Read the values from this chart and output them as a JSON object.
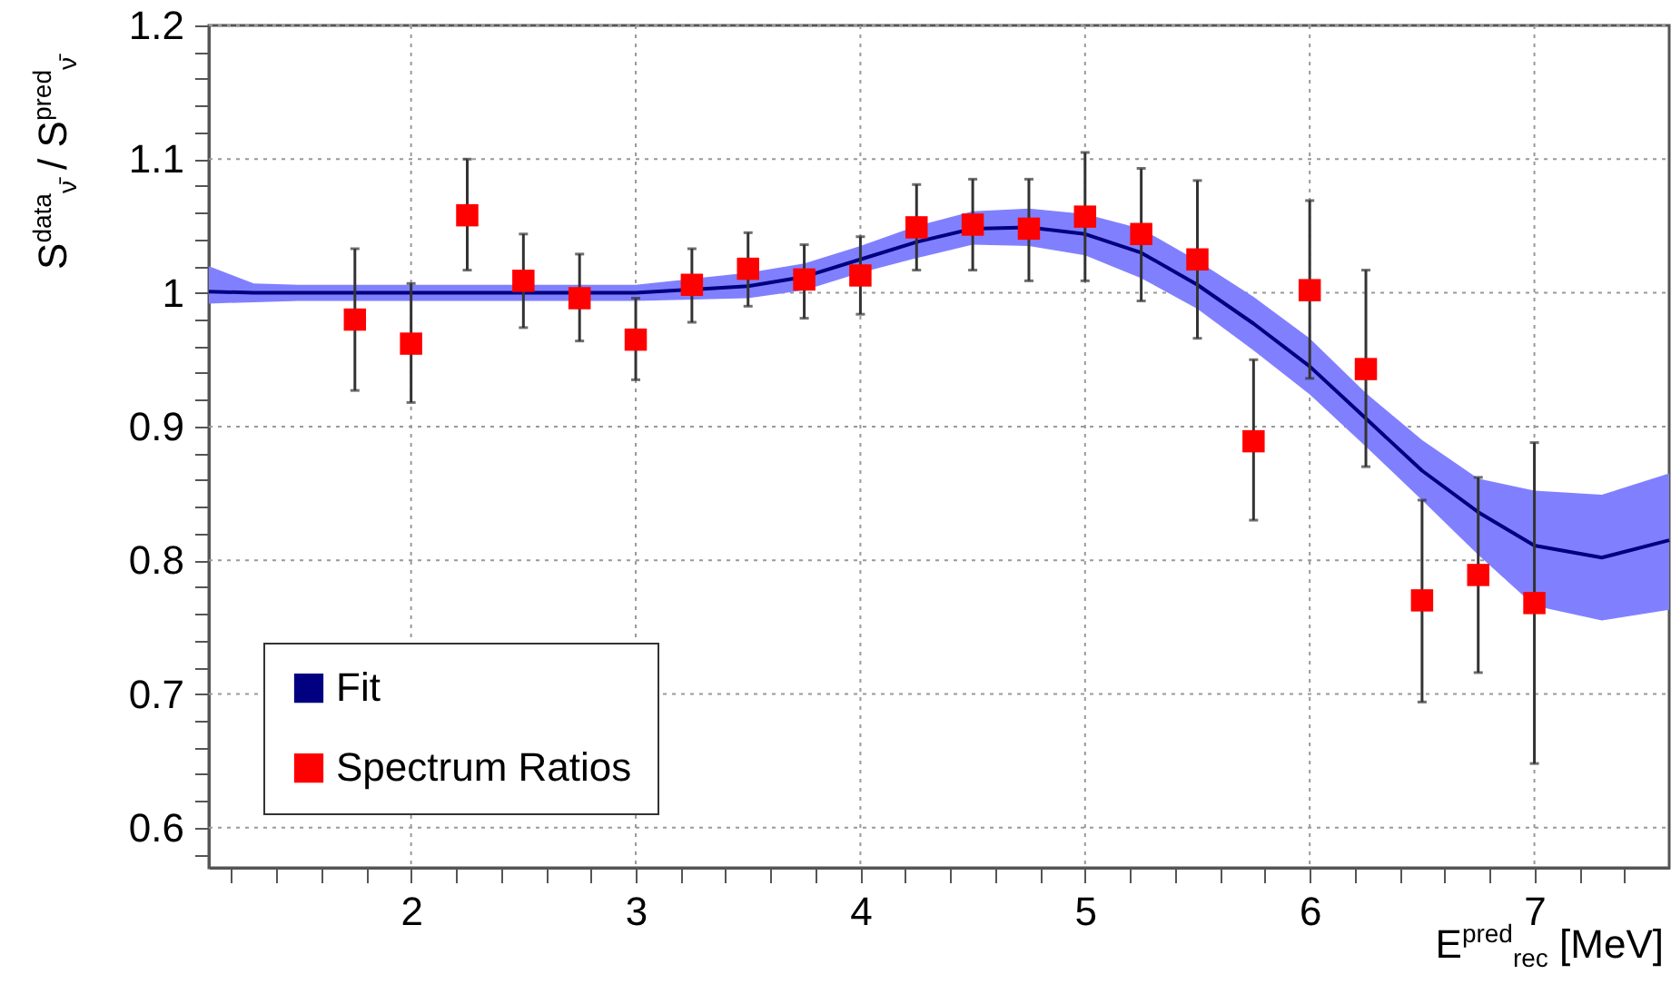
{
  "chart_data": {
    "type": "scatter",
    "xlabel": "E$^{pred}$$_{rec}$ [MeV]",
    "ylabel": "S$^{data}$$_{ν̄}$ / S$^{pred}$$_{ν̄}$",
    "xlim": [
      1.1,
      7.6
    ],
    "ylim": [
      0.57,
      1.2
    ],
    "xticks": [
      {
        "value": 1.2,
        "label": null
      },
      {
        "value": 1.4,
        "label": null
      },
      {
        "value": 1.6,
        "label": null
      },
      {
        "value": 1.8,
        "label": null
      },
      2,
      {
        "value": 2.2,
        "label": null
      },
      {
        "value": 2.4,
        "label": null
      },
      {
        "value": 2.6,
        "label": null
      },
      {
        "value": 2.8,
        "label": null
      },
      3,
      {
        "value": 3.2,
        "label": null
      },
      {
        "value": 3.4,
        "label": null
      },
      {
        "value": 3.6,
        "label": null
      },
      {
        "value": 3.8,
        "label": null
      },
      4,
      {
        "value": 4.2,
        "label": null
      },
      {
        "value": 4.4,
        "label": null
      },
      {
        "value": 4.6,
        "label": null
      },
      {
        "value": 4.8,
        "label": null
      },
      5,
      {
        "value": 5.2,
        "label": null
      },
      {
        "value": 5.4,
        "label": null
      },
      {
        "value": 5.6,
        "label": null
      },
      {
        "value": 5.8,
        "label": null
      },
      6,
      {
        "value": 6.2,
        "label": null
      },
      {
        "value": 6.4,
        "label": null
      },
      {
        "value": 6.6,
        "label": null
      },
      {
        "value": 6.8,
        "label": null
      },
      7,
      {
        "value": 7.2,
        "label": null
      },
      {
        "value": 7.4,
        "label": null
      }
    ],
    "yticks": [
      {
        "value": 0.58,
        "label": null
      },
      0.6,
      {
        "value": 0.62,
        "label": null
      },
      {
        "value": 0.64,
        "label": null
      },
      {
        "value": 0.66,
        "label": null
      },
      {
        "value": 0.68,
        "label": null
      },
      0.7,
      {
        "value": 0.72,
        "label": null
      },
      {
        "value": 0.74,
        "label": null
      },
      {
        "value": 0.76,
        "label": null
      },
      {
        "value": 0.78,
        "label": null
      },
      0.8,
      {
        "value": 0.82,
        "label": null
      },
      {
        "value": 0.84,
        "label": null
      },
      {
        "value": 0.86,
        "label": null
      },
      {
        "value": 0.88,
        "label": null
      },
      0.9,
      {
        "value": 0.92,
        "label": null
      },
      {
        "value": 0.94,
        "label": null
      },
      {
        "value": 0.96,
        "label": null
      },
      {
        "value": 0.98,
        "label": null
      },
      1,
      {
        "value": 1.02,
        "label": null
      },
      {
        "value": 1.04,
        "label": null
      },
      {
        "value": 1.06,
        "label": null
      },
      {
        "value": 1.08,
        "label": null
      },
      1.1,
      {
        "value": 1.12,
        "label": null
      },
      {
        "value": 1.14,
        "label": null
      },
      {
        "value": 1.16,
        "label": null
      },
      {
        "value": 1.18,
        "label": null
      },
      1.2
    ],
    "grid": true,
    "legend": "bottom left",
    "series": [
      {
        "name": "Fit",
        "type": "line",
        "color": "#000080",
        "x": [
          1.1,
          1.3,
          1.5,
          2,
          2.5,
          3,
          3.5,
          3.75,
          4,
          4.25,
          4.5,
          4.75,
          5,
          5.25,
          5.5,
          5.75,
          6,
          6.25,
          6.5,
          6.75,
          7,
          7.3,
          7.6
        ],
        "values": [
          1.001,
          1.0,
          1.0,
          1.0,
          1.0,
          1.0,
          1.005,
          1.012,
          1.025,
          1.038,
          1.048,
          1.049,
          1.044,
          1.03,
          1.006,
          0.977,
          0.945,
          0.906,
          0.867,
          0.836,
          0.811,
          0.802,
          0.815
        ],
        "lower": [
          0.992,
          0.993,
          0.994,
          0.994,
          0.994,
          0.994,
          0.996,
          1.002,
          1.015,
          1.026,
          1.036,
          1.035,
          1.028,
          1.011,
          0.988,
          0.957,
          0.924,
          0.885,
          0.845,
          0.804,
          0.766,
          0.755,
          0.763
        ],
        "upper": [
          1.02,
          1.007,
          1.006,
          1.006,
          1.006,
          1.006,
          1.015,
          1.022,
          1.035,
          1.05,
          1.061,
          1.063,
          1.059,
          1.048,
          1.024,
          0.997,
          0.966,
          0.925,
          0.89,
          0.861,
          0.852,
          0.849,
          0.865
        ]
      },
      {
        "name": "Spectrum Ratios",
        "type": "scatter",
        "marker": "square",
        "color": "#ff0000",
        "x": [
          1.75,
          2,
          2.25,
          2.5,
          2.75,
          3,
          3.25,
          3.5,
          3.75,
          4,
          4.25,
          4.5,
          4.75,
          5,
          5.25,
          5.5,
          5.75,
          6,
          6.25,
          6.5,
          6.75,
          7
        ],
        "values": [
          0.98,
          0.962,
          1.058,
          1.009,
          0.996,
          0.965,
          1.006,
          1.018,
          1.01,
          1.013,
          1.049,
          1.051,
          1.048,
          1.057,
          1.044,
          1.025,
          0.889,
          1.002,
          0.943,
          0.77,
          0.789,
          0.768
        ],
        "errors": [
          [
            0.927,
            1.033
          ],
          [
            0.918,
            1.007
          ],
          [
            1.017,
            1.1
          ],
          [
            0.974,
            1.044
          ],
          [
            0.964,
            1.029
          ],
          [
            0.935,
            0.996
          ],
          [
            0.978,
            1.033
          ],
          [
            0.99,
            1.045
          ],
          [
            0.981,
            1.036
          ],
          [
            0.984,
            1.042
          ],
          [
            1.017,
            1.081
          ],
          [
            1.017,
            1.085
          ],
          [
            1.009,
            1.085
          ],
          [
            1.009,
            1.105
          ],
          [
            0.994,
            1.093
          ],
          [
            0.966,
            1.084
          ],
          [
            0.83,
            0.95
          ],
          [
            0.936,
            1.069
          ],
          [
            0.87,
            1.017
          ],
          [
            0.694,
            0.845
          ],
          [
            0.716,
            0.862
          ],
          [
            0.648,
            0.888
          ]
        ]
      }
    ]
  }
}
